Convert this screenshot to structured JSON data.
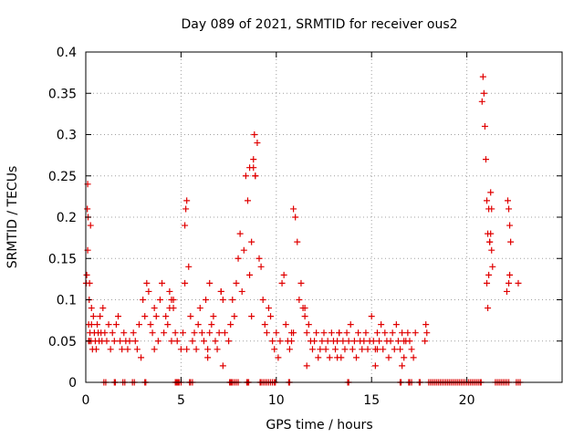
{
  "chart_data": {
    "type": "scatter",
    "title": "Day 089 of 2021, SRMTID for receiver ous2",
    "xlabel": "GPS time / hours",
    "ylabel": "SRMTID / TECUs",
    "xlim": [
      0,
      25
    ],
    "ylim": [
      0,
      0.4
    ],
    "xticks": [
      0,
      5,
      10,
      15,
      20
    ],
    "yticks": [
      0,
      0.05,
      0.1,
      0.15,
      0.2,
      0.25,
      0.3,
      0.35,
      0.4
    ],
    "xtick_labels": [
      "0",
      "5",
      "10",
      "15",
      "20"
    ],
    "ytick_labels": [
      "0",
      "0.05",
      "0.1",
      "0.15",
      "0.2",
      "0.25",
      "0.3",
      "0.35",
      "0.4"
    ],
    "grid": true,
    "marker": "+",
    "marker_color": "#e00000",
    "series": [
      {
        "name": "SRMTID",
        "x": [
          0.02,
          0.05,
          0.08,
          0.1,
          0.12,
          0.15,
          0.18,
          0.2,
          0.22,
          0.25,
          0.28,
          0.3,
          0.35,
          0.4,
          0.45,
          0.5,
          0.55,
          0.6,
          0.65,
          0.7,
          0.75,
          0.8,
          0.85,
          0.9,
          1.0,
          1.1,
          1.2,
          1.3,
          1.4,
          1.5,
          1.6,
          1.7,
          1.8,
          1.9,
          2.0,
          2.1,
          2.2,
          2.3,
          2.5,
          2.6,
          2.7,
          2.8,
          2.9,
          3.0,
          3.1,
          3.2,
          3.3,
          3.4,
          3.5,
          3.6,
          3.7,
          3.8,
          3.9,
          4.0,
          4.1,
          4.2,
          4.3,
          4.4,
          4.5,
          4.6,
          4.7,
          4.8,
          5.0,
          5.1,
          5.2,
          5.25,
          5.3,
          5.4,
          5.5,
          5.6,
          5.7,
          5.8,
          5.9,
          6.0,
          6.1,
          6.2,
          6.3,
          6.4,
          6.5,
          6.6,
          6.7,
          6.8,
          6.9,
          7.0,
          7.1,
          7.2,
          7.3,
          7.5,
          7.6,
          7.7,
          7.8,
          7.9,
          8.0,
          8.1,
          8.2,
          8.3,
          8.4,
          8.5,
          8.6,
          8.7,
          8.8,
          8.85,
          8.9,
          9.0,
          9.1,
          9.2,
          9.3,
          9.4,
          9.5,
          9.6,
          9.7,
          9.8,
          9.9,
          10.0,
          10.1,
          10.2,
          10.3,
          10.4,
          10.5,
          10.6,
          10.7,
          10.8,
          10.9,
          11.0,
          11.1,
          11.2,
          11.3,
          11.4,
          11.5,
          11.6,
          11.7,
          11.8,
          11.9,
          12.0,
          12.1,
          12.2,
          12.3,
          12.4,
          12.5,
          12.6,
          12.7,
          12.8,
          12.9,
          13.0,
          13.1,
          13.2,
          13.3,
          13.4,
          13.5,
          13.6,
          13.7,
          13.8,
          13.9,
          14.0,
          14.1,
          14.2,
          14.3,
          14.4,
          14.5,
          14.6,
          14.7,
          14.8,
          14.9,
          15.0,
          15.1,
          15.2,
          15.3,
          15.4,
          15.5,
          15.6,
          15.7,
          15.8,
          15.9,
          16.0,
          16.1,
          16.2,
          16.3,
          16.4,
          16.5,
          16.6,
          16.7,
          16.8,
          16.9,
          17.0,
          17.1,
          17.2,
          17.3,
          17.8,
          17.85,
          17.9,
          20.8,
          20.85,
          20.9,
          20.95,
          21.0,
          21.05,
          21.1,
          21.15,
          21.2,
          21.25,
          21.3,
          21.35,
          21.05,
          21.1,
          22.1,
          22.15,
          22.2,
          22.25,
          22.3,
          22.7,
          0.1,
          0.2,
          0.3,
          0.15,
          3.6,
          4.4,
          4.5,
          4.6,
          5.2,
          5.3,
          6.4,
          6.5,
          7.1,
          7.2,
          8.7,
          8.8,
          8.9,
          8.6,
          10.8,
          10.9,
          11.5,
          11.6,
          13.2,
          13.3,
          15.2,
          15.3,
          16.6,
          16.7,
          21.15,
          21.2,
          21.25,
          21.3,
          22.2,
          22.25
        ],
        "y": [
          0.12,
          0.13,
          0.21,
          0.24,
          0.2,
          0.07,
          0.1,
          0.05,
          0.06,
          0.19,
          0.05,
          0.07,
          0.04,
          0.08,
          0.06,
          0.05,
          0.04,
          0.07,
          0.06,
          0.05,
          0.08,
          0.06,
          0.05,
          0.09,
          0.06,
          0.05,
          0.07,
          0.04,
          0.06,
          0.05,
          0.07,
          0.08,
          0.05,
          0.04,
          0.06,
          0.05,
          0.04,
          0.05,
          0.06,
          0.05,
          0.04,
          0.07,
          0.03,
          0.1,
          0.08,
          0.12,
          0.11,
          0.07,
          0.06,
          0.09,
          0.08,
          0.05,
          0.1,
          0.12,
          0.06,
          0.08,
          0.07,
          0.11,
          0.05,
          0.09,
          0.06,
          0.05,
          0.04,
          0.06,
          0.19,
          0.21,
          0.22,
          0.14,
          0.08,
          0.05,
          0.06,
          0.04,
          0.07,
          0.09,
          0.06,
          0.05,
          0.1,
          0.04,
          0.06,
          0.07,
          0.08,
          0.05,
          0.04,
          0.06,
          0.11,
          0.1,
          0.06,
          0.05,
          0.07,
          0.1,
          0.08,
          0.12,
          0.15,
          0.18,
          0.11,
          0.16,
          0.25,
          0.22,
          0.13,
          0.17,
          0.26,
          0.3,
          0.25,
          0.29,
          0.15,
          0.14,
          0.1,
          0.07,
          0.06,
          0.09,
          0.08,
          0.05,
          0.04,
          0.06,
          0.03,
          0.05,
          0.12,
          0.13,
          0.07,
          0.05,
          0.04,
          0.06,
          0.21,
          0.2,
          0.17,
          0.1,
          0.12,
          0.09,
          0.08,
          0.06,
          0.07,
          0.05,
          0.04,
          0.05,
          0.06,
          0.03,
          0.04,
          0.05,
          0.06,
          0.04,
          0.05,
          0.03,
          0.06,
          0.05,
          0.04,
          0.05,
          0.06,
          0.03,
          0.05,
          0.04,
          0.06,
          0.05,
          0.07,
          0.04,
          0.05,
          0.03,
          0.06,
          0.05,
          0.04,
          0.05,
          0.06,
          0.04,
          0.05,
          0.08,
          0.05,
          0.04,
          0.06,
          0.05,
          0.07,
          0.04,
          0.06,
          0.05,
          0.03,
          0.05,
          0.06,
          0.04,
          0.07,
          0.05,
          0.04,
          0.06,
          0.03,
          0.05,
          0.06,
          0.05,
          0.04,
          0.03,
          0.06,
          0.05,
          0.07,
          0.06,
          0.34,
          0.37,
          0.35,
          0.31,
          0.27,
          0.22,
          0.18,
          0.21,
          0.17,
          0.23,
          0.16,
          0.14,
          0.12,
          0.09,
          0.11,
          0.22,
          0.21,
          0.19,
          0.17,
          0.12,
          0.16,
          0.12,
          0.09,
          0.05,
          0.04,
          0.09,
          0.1,
          0.1,
          0.12,
          0.04,
          0.03,
          0.12,
          0.11,
          0.02,
          0.08,
          0.27,
          0.25,
          0.26,
          0.05,
          0.06,
          0.09,
          0.02,
          0.03,
          0.06,
          0.02,
          0.04,
          0.02,
          0.05,
          0.13,
          0.17,
          0.18,
          0.21,
          0.12,
          0.13
        ],
        "zeros_x": [
          0.95,
          1.05,
          1.5,
          1.55,
          1.95,
          2.05,
          2.45,
          2.55,
          3.1,
          3.15,
          4.7,
          4.75,
          4.8,
          4.85,
          4.9,
          5.0,
          5.45,
          5.5,
          5.6,
          7.55,
          7.6,
          7.65,
          7.7,
          7.8,
          7.9,
          8.0,
          8.45,
          8.5,
          8.55,
          9.15,
          9.2,
          9.3,
          9.4,
          9.5,
          9.6,
          9.7,
          9.8,
          9.9,
          9.95,
          10.65,
          10.7,
          13.75,
          13.8,
          16.5,
          16.55,
          16.95,
          17.0,
          17.1,
          17.5,
          17.55,
          18.0,
          18.1,
          18.2,
          18.3,
          18.4,
          18.5,
          18.6,
          18.7,
          18.8,
          18.9,
          19.0,
          19.1,
          19.2,
          19.3,
          19.4,
          19.5,
          19.6,
          19.7,
          19.8,
          19.9,
          20.0,
          20.1,
          20.2,
          20.3,
          20.4,
          20.5,
          20.6,
          20.7,
          20.75,
          21.5,
          21.6,
          21.7,
          21.8,
          21.9,
          22.0,
          22.1,
          22.2,
          22.6,
          22.7,
          22.8
        ]
      }
    ]
  }
}
